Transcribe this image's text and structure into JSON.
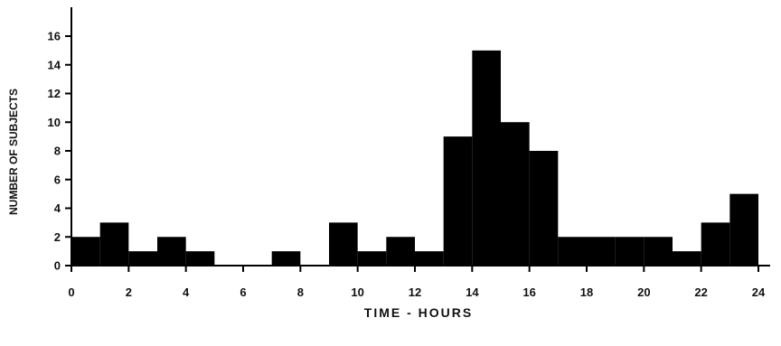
{
  "chart_data": {
    "type": "bar",
    "title": "",
    "xlabel": "TIME - HOURS",
    "ylabel": "NUMBER OF SUBJECTS",
    "bin_width_hours": 1,
    "x": [
      0,
      1,
      2,
      3,
      4,
      5,
      6,
      7,
      8,
      9,
      10,
      11,
      12,
      13,
      14,
      15,
      16,
      17,
      18,
      19,
      20,
      21,
      22,
      23
    ],
    "values": [
      2,
      3,
      1,
      2,
      1,
      0,
      0,
      1,
      0,
      3,
      1,
      2,
      1,
      9,
      15,
      10,
      8,
      2,
      2,
      2,
      2,
      1,
      3,
      5
    ],
    "xlim": [
      0,
      24
    ],
    "ylim": [
      0,
      16
    ],
    "xticks": [
      "0",
      "2",
      "4",
      "6",
      "8",
      "10",
      "12",
      "14",
      "16",
      "18",
      "20",
      "22",
      "24"
    ],
    "yticks": [
      "0",
      "2",
      "4",
      "6",
      "8",
      "10",
      "12",
      "14",
      "16"
    ],
    "grid": false,
    "bar_color": "#000000"
  }
}
